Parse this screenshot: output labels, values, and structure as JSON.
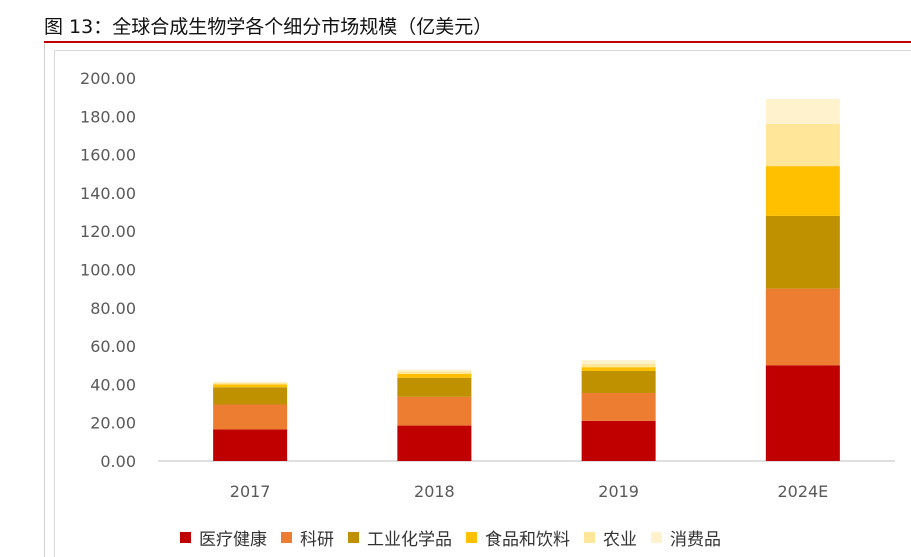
{
  "page": {
    "title": "图 13：全球合成生物学各个细分市场规模（亿美元）"
  },
  "chart_data": {
    "type": "bar",
    "stacked": true,
    "title": "",
    "xlabel": "",
    "ylabel": "",
    "categories": [
      "2017",
      "2018",
      "2019",
      "2024E"
    ],
    "ylim": [
      0,
      200
    ],
    "yticks": [
      "0.00",
      "20.00",
      "40.00",
      "60.00",
      "80.00",
      "100.00",
      "120.00",
      "140.00",
      "160.00",
      "180.00",
      "200.00"
    ],
    "grid": false,
    "legend_position": "bottom",
    "series": [
      {
        "name": "医疗健康",
        "color": "#c00000",
        "values": [
          16.5,
          18.5,
          21,
          50
        ]
      },
      {
        "name": "科研",
        "color": "#ed7d31",
        "values": [
          13,
          15,
          14.5,
          40
        ]
      },
      {
        "name": "工业化学品",
        "color": "#bf9000",
        "values": [
          9,
          10,
          11.5,
          38
        ]
      },
      {
        "name": "食品和饮料",
        "color": "#ffc000",
        "values": [
          1.5,
          2,
          2,
          26
        ]
      },
      {
        "name": "农业",
        "color": "#ffe699",
        "values": [
          0.8,
          1.2,
          1.7,
          22
        ]
      },
      {
        "name": "消费品",
        "color": "#fff2cc",
        "values": [
          0.7,
          1,
          2,
          13
        ]
      }
    ]
  }
}
